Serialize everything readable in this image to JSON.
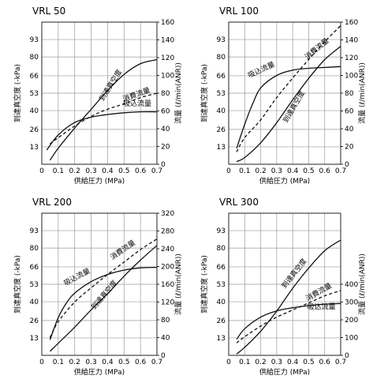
{
  "chart_data": [
    {
      "type": "line",
      "title": "VRL 50",
      "xlabel": "供給圧力 (MPa)",
      "ylabel": "到達真空度 (-kPa)",
      "y2label": "流量 (ℓ/min(ANR))",
      "xlim": [
        0,
        0.7
      ],
      "ylim": [
        0,
        106
      ],
      "y2lim": [
        0,
        160
      ],
      "x_ticks": [
        "0",
        "0.1",
        "0.2",
        "0.3",
        "0.4",
        "0.5",
        "0.6",
        "0.7"
      ],
      "y_ticks": [
        "93",
        "80",
        "66",
        "53",
        "40",
        "26",
        "13"
      ],
      "y2_ticks": [
        "160",
        "140",
        "120",
        "100",
        "80",
        "60",
        "40",
        "20",
        "0"
      ],
      "series": [
        {
          "name": "到達真空度",
          "axis": "left",
          "style": "solid",
          "label_pos": [
            0.43,
            58
          ],
          "label_rot": -58,
          "x": [
            0.05,
            0.1,
            0.2,
            0.3,
            0.4,
            0.5,
            0.6,
            0.7
          ],
          "y": [
            3,
            12,
            27,
            41,
            55,
            67,
            75,
            78
          ]
        },
        {
          "name": "消費流量",
          "axis": "right",
          "style": "dashed",
          "label_pos": [
            0.58,
            76
          ],
          "label_rot": -20,
          "x": [
            0.05,
            0.1,
            0.2,
            0.3,
            0.4,
            0.5,
            0.6,
            0.7
          ],
          "y": [
            23,
            30,
            43,
            54,
            62,
            68,
            75,
            80
          ]
        },
        {
          "name": "吸込流量",
          "axis": "right",
          "style": "solid",
          "label_pos": [
            0.58,
            66
          ],
          "label_rot": 0,
          "x": [
            0.03,
            0.1,
            0.2,
            0.3,
            0.4,
            0.5,
            0.6,
            0.7
          ],
          "y": [
            16,
            33,
            47,
            53,
            56,
            58,
            59,
            59
          ]
        }
      ]
    },
    {
      "type": "line",
      "title": "VRL 100",
      "xlabel": "供給圧力 (MPa)",
      "ylabel": "到達真空度 (-kPa)",
      "y2label": "流量 (ℓ/min(ANR))",
      "xlim": [
        0,
        0.7
      ],
      "ylim": [
        0,
        106
      ],
      "y2lim": [
        0,
        160
      ],
      "x_ticks": [
        "0",
        "0.1",
        "0.2",
        "0.3",
        "0.4",
        "0.5",
        "0.6",
        "0.7"
      ],
      "y_ticks": [
        "93",
        "80",
        "66",
        "53",
        "40",
        "26",
        "13"
      ],
      "y2_ticks": [
        "160",
        "140",
        "120",
        "100",
        "80",
        "60",
        "40",
        "20",
        "0"
      ],
      "series": [
        {
          "name": "到達真空度",
          "axis": "left",
          "style": "solid",
          "label_pos": [
            0.42,
            42
          ],
          "label_rot": -60,
          "x": [
            0.05,
            0.1,
            0.2,
            0.3,
            0.4,
            0.5,
            0.6,
            0.7
          ],
          "y": [
            2,
            5,
            16,
            31,
            48,
            64,
            78,
            88
          ]
        },
        {
          "name": "消費流量",
          "axis": "right",
          "style": "dashed",
          "label_pos": [
            0.56,
            128
          ],
          "label_rot": -40,
          "x": [
            0.05,
            0.1,
            0.2,
            0.3,
            0.4,
            0.5,
            0.6,
            0.7
          ],
          "y": [
            14,
            30,
            50,
            75,
            97,
            118,
            138,
            156
          ]
        },
        {
          "name": "吸込流量",
          "axis": "right",
          "style": "solid",
          "label_pos": [
            0.21,
            104
          ],
          "label_rot": -25,
          "x": [
            0.05,
            0.1,
            0.15,
            0.2,
            0.3,
            0.4,
            0.5,
            0.6,
            0.7
          ],
          "y": [
            18,
            45,
            68,
            86,
            100,
            106,
            108,
            109,
            110
          ]
        }
      ]
    },
    {
      "type": "line",
      "title": "VRL 200",
      "xlabel": "供給圧力 (MPa)",
      "ylabel": "到達真空度 (-kPa)",
      "y2label": "流量 (ℓ/min(ANR))",
      "xlim": [
        0,
        0.7
      ],
      "ylim": [
        0,
        106
      ],
      "y2lim": [
        0,
        320
      ],
      "x_ticks": [
        "0",
        "0.1",
        "0.2",
        "0.3",
        "0.4",
        "0.5",
        "0.6",
        "0.7"
      ],
      "y_ticks": [
        "93",
        "80",
        "66",
        "53",
        "40",
        "26",
        "13"
      ],
      "y2_ticks": [
        "320",
        "280",
        "240",
        "200",
        "160",
        "120",
        "80",
        "40",
        "0"
      ],
      "series": [
        {
          "name": "到達真空度",
          "axis": "left",
          "style": "solid",
          "label_pos": [
            0.39,
            44
          ],
          "label_rot": -50,
          "x": [
            0.05,
            0.1,
            0.2,
            0.3,
            0.4,
            0.5,
            0.6,
            0.7
          ],
          "y": [
            3,
            9,
            21,
            34,
            46,
            59,
            71,
            82
          ]
        },
        {
          "name": "消費流量",
          "axis": "right",
          "style": "dashed",
          "label_pos": [
            0.5,
            233
          ],
          "label_rot": -35,
          "x": [
            0.05,
            0.1,
            0.2,
            0.3,
            0.4,
            0.5,
            0.6,
            0.7
          ],
          "y": [
            40,
            76,
            120,
            152,
            182,
            210,
            238,
            262
          ]
        },
        {
          "name": "吸込流量",
          "axis": "right",
          "style": "solid",
          "label_pos": [
            0.22,
            172
          ],
          "label_rot": -28,
          "x": [
            0.05,
            0.1,
            0.15,
            0.2,
            0.3,
            0.4,
            0.5,
            0.6,
            0.7
          ],
          "y": [
            35,
            85,
            118,
            140,
            166,
            182,
            192,
            197,
            198
          ]
        }
      ]
    },
    {
      "type": "line",
      "title": "VRL 300",
      "xlabel": "供給圧力 (MPa)",
      "ylabel": "到達真空度 (-kPa)",
      "y2label": "流量 (ℓ/min(ANR))",
      "xlim": [
        0,
        0.7
      ],
      "ylim": [
        0,
        106
      ],
      "y2lim": [
        0,
        800
      ],
      "x_ticks": [
        "0",
        "0.1",
        "0.2",
        "0.3",
        "0.4",
        "0.5",
        "0.6",
        "0.7"
      ],
      "y_ticks": [
        "93",
        "80",
        "66",
        "53",
        "40",
        "26",
        "13"
      ],
      "y2_ticks": [
        "400",
        "300",
        "200",
        "100",
        "0"
      ],
      "series": [
        {
          "name": "到達真空度",
          "axis": "left",
          "style": "solid",
          "label_pos": [
            0.42,
            60
          ],
          "label_rot": -52,
          "x": [
            0.05,
            0.1,
            0.2,
            0.3,
            0.4,
            0.5,
            0.6,
            0.7
          ],
          "y": [
            1,
            6,
            18,
            33,
            50,
            65,
            78,
            86
          ]
        },
        {
          "name": "消費流量",
          "axis": "right",
          "style": "dashed",
          "label_pos": [
            0.57,
            345
          ],
          "label_rot": -30,
          "x": [
            0.05,
            0.1,
            0.2,
            0.3,
            0.4,
            0.5,
            0.6,
            0.7
          ],
          "y": [
            70,
            105,
            165,
            215,
            255,
            295,
            335,
            365
          ]
        },
        {
          "name": "吸込流量",
          "axis": "right",
          "style": "solid",
          "label_pos": [
            0.58,
            260
          ],
          "label_rot": 0,
          "x": [
            0.05,
            0.1,
            0.2,
            0.3,
            0.4,
            0.5,
            0.6,
            0.7
          ],
          "y": [
            90,
            150,
            215,
            250,
            268,
            280,
            288,
            292
          ]
        }
      ]
    }
  ]
}
